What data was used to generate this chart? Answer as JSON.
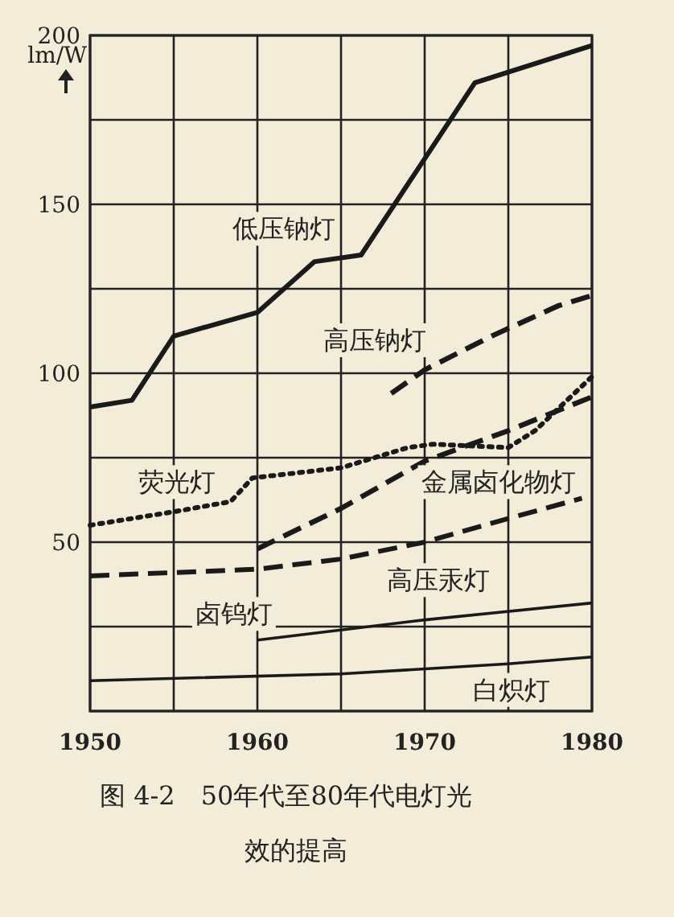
{
  "chart_data": {
    "type": "line",
    "title": "图 4-2　50年代至80年代电灯光效的提高",
    "ylabel": "lm/W",
    "xlim": [
      1950,
      1980
    ],
    "xticks": [
      1950,
      {
        "value": 1955,
        "label": null
      },
      1960,
      {
        "value": 1965,
        "label": null
      },
      1970,
      {
        "value": 1975,
        "label": null
      },
      1980
    ],
    "ylim": [
      0,
      200
    ],
    "yticks": [
      {
        "value": 0,
        "label": null
      },
      {
        "value": 25,
        "label": null
      },
      50,
      {
        "value": 75,
        "label": null
      },
      100,
      {
        "value": 125,
        "label": null
      },
      150,
      {
        "value": 175,
        "label": null
      },
      200
    ],
    "grid": true,
    "marker": "none",
    "series": [
      {
        "name": "低压钠灯",
        "color": "#1a1a1a",
        "line_style": "solid",
        "x": [
          1950,
          1952.5,
          1955,
          1960,
          1963.4,
          1966.2,
          1973,
          1980
        ],
        "values": [
          90,
          92,
          111,
          118,
          133,
          135,
          186,
          197
        ]
      },
      {
        "name": "高压钠灯",
        "color": "#1a1a1a",
        "line_style": "dashed",
        "x": [
          1968,
          1970,
          1974,
          1978,
          1980
        ],
        "values": [
          94,
          101,
          111,
          120,
          123
        ]
      },
      {
        "name": "荧光灯",
        "color": "#1a1a1a",
        "line_style": "dotted",
        "x": [
          1950,
          1955,
          1958.4,
          1959.7,
          1965,
          1969,
          1970.5,
          1975,
          1976.6,
          1980
        ],
        "values": [
          55,
          59,
          62,
          69,
          72,
          78,
          79,
          78,
          83,
          99
        ]
      },
      {
        "name": "金属卤化物灯",
        "color": "#1a1a1a",
        "line_style": "dashed",
        "x": [
          1960,
          1965,
          1970,
          1975,
          1980
        ],
        "values": [
          48,
          60,
          74,
          83,
          93
        ]
      },
      {
        "name": "高压汞灯",
        "color": "#1a1a1a",
        "line_style": "dashed",
        "x": [
          1950,
          1960,
          1965,
          1970,
          1975,
          1979.4
        ],
        "values": [
          40,
          42,
          45,
          50,
          57,
          63
        ]
      },
      {
        "name": "卤钨灯",
        "color": "#1a1a1a",
        "line_style": "solid",
        "x": [
          1960,
          1970,
          1980
        ],
        "values": [
          21,
          27,
          32
        ]
      },
      {
        "name": "白炽灯",
        "color": "#1a1a1a",
        "line_style": "solid",
        "x": [
          1950,
          1965,
          1975,
          1980
        ],
        "values": [
          9,
          11,
          14,
          16
        ]
      }
    ]
  }
}
